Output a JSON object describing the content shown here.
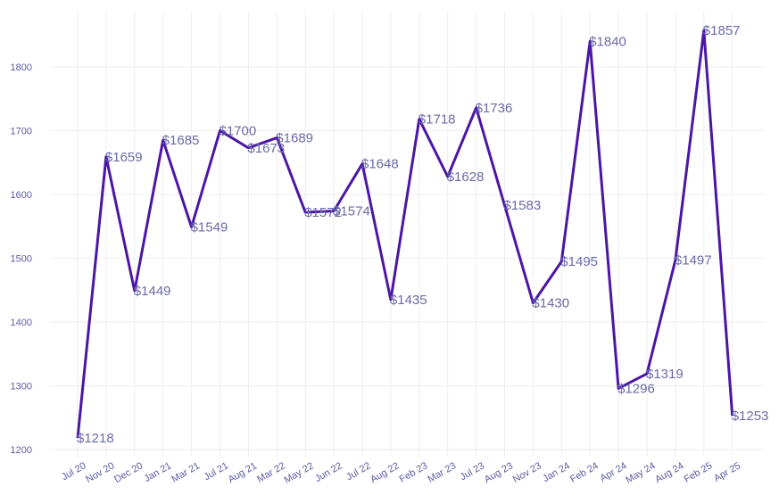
{
  "colors": {
    "line": "#4b16a6",
    "label": "#6a6aa8",
    "tick": "#5b5aa6",
    "grid": "#eeeef2"
  },
  "chart_data": {
    "type": "line",
    "title": "",
    "xlabel": "",
    "ylabel": "",
    "ylim": [
      1200,
      1850
    ],
    "yticks": [
      1200,
      1300,
      1400,
      1500,
      1600,
      1700,
      1800
    ],
    "grid": true,
    "categories": [
      "Jul 20",
      "Nov 20",
      "Dec 20",
      "Jan 21",
      "Mar 21",
      "Jul 21",
      "Aug 21",
      "Mar 22",
      "May 22",
      "Jun 22",
      "Jul 22",
      "Aug 22",
      "Feb 23",
      "Mar 23",
      "Jul 23",
      "Aug 23",
      "Nov 23",
      "Jan 24",
      "Feb 24",
      "Apr 24",
      "May 24",
      "Aug 24",
      "Feb 25",
      "Apr 25"
    ],
    "values": [
      1218,
      1659,
      1449,
      1685,
      1549,
      1700,
      1673,
      1689,
      1572,
      1574,
      1648,
      1435,
      1718,
      1628,
      1736,
      1583,
      1430,
      1495,
      1840,
      1296,
      1319,
      1497,
      1857,
      1253
    ],
    "labels": [
      "$1218",
      "$1659",
      "$1449",
      "$1685",
      "$1549",
      "$1700",
      "$1673",
      "$1689",
      "$1572",
      "$1574",
      "$1648",
      "$1435",
      "$1718",
      "$1628",
      "$1736",
      "$1583",
      "$1430",
      "$1495",
      "$1840",
      "$1296",
      "$1319",
      "$1497",
      "$1857",
      "$1253"
    ]
  }
}
